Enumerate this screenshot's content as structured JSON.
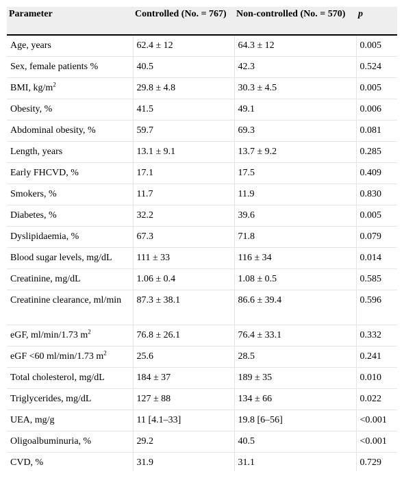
{
  "table": {
    "headers": {
      "parameter": "Parameter",
      "controlled": "Controlled (No. = 767)",
      "noncontrolled": "Non-controlled (No. = 570)",
      "p": "p"
    },
    "rows": [
      {
        "label": "Age, years",
        "sup": "",
        "controlled": "62.4 ± 12",
        "noncontrolled": "64.3 ± 12",
        "p": "0.005"
      },
      {
        "label": "Sex, female patients %",
        "sup": "",
        "controlled": "40.5",
        "noncontrolled": "42.3",
        "p": "0.524"
      },
      {
        "label": "BMI, kg/m",
        "sup": "2",
        "controlled": "29.8 ± 4.8",
        "noncontrolled": "30.3 ± 4.5",
        "p": "0.005"
      },
      {
        "label": "Obesity, %",
        "sup": "",
        "controlled": "41.5",
        "noncontrolled": "49.1",
        "p": "0.006"
      },
      {
        "label": "Abdominal obesity, %",
        "sup": "",
        "controlled": "59.7",
        "noncontrolled": "69.3",
        "p": "0.081"
      },
      {
        "label": "Length, years",
        "sup": "",
        "controlled": "13.1 ± 9.1",
        "noncontrolled": "13.7 ± 9.2",
        "p": "0.285"
      },
      {
        "label": "Early FHCVD, %",
        "sup": "",
        "controlled": "17.1",
        "noncontrolled": "17.5",
        "p": "0.409"
      },
      {
        "label": "Smokers, %",
        "sup": "",
        "controlled": "11.7",
        "noncontrolled": "11.9",
        "p": "0.830"
      },
      {
        "label": "Diabetes, %",
        "sup": "",
        "controlled": "32.2",
        "noncontrolled": "39.6",
        "p": "0.005"
      },
      {
        "label": "Dyslipidaemia, %",
        "sup": "",
        "controlled": "67.3",
        "noncontrolled": "71.8",
        "p": "0.079"
      },
      {
        "label": "Blood sugar levels, mg/dL",
        "sup": "",
        "controlled": "111 ± 33",
        "noncontrolled": "116 ± 34",
        "p": "0.014"
      },
      {
        "label": "Creatinine, mg/dL",
        "sup": "",
        "controlled": "1.06 ± 0.4",
        "noncontrolled": "1.08 ± 0.5",
        "p": "0.585"
      },
      {
        "label": "Creatinine clearance, ml/min",
        "sup": "",
        "controlled": "87.3 ± 38.1",
        "noncontrolled": "86.6 ± 39.4",
        "p": "0.596",
        "tall": true
      },
      {
        "label": "eGF, ml/min/1.73 m",
        "sup": "2",
        "controlled": "76.8 ± 26.1",
        "noncontrolled": "76.4 ± 33.1",
        "p": "0.332"
      },
      {
        "label": "eGF <60 ml/min/1.73 m",
        "sup": "2",
        "controlled": "25.6",
        "noncontrolled": "28.5",
        "p": "0.241"
      },
      {
        "label": "Total cholesterol, mg/dL",
        "sup": "",
        "controlled": "184 ± 37",
        "noncontrolled": "189 ± 35",
        "p": "0.010"
      },
      {
        "label": "Triglycerides, mg/dL",
        "sup": "",
        "controlled": "127 ± 88",
        "noncontrolled": "134 ± 66",
        "p": "0.022"
      },
      {
        "label": "UEA, mg/g",
        "sup": "",
        "controlled": "11 [4.1–33]",
        "noncontrolled": "19.8 [6–56]",
        "p": "<0.001"
      },
      {
        "label": "Oligoalbuminuria, %",
        "sup": "",
        "controlled": "29.2",
        "noncontrolled": "40.5",
        "p": "<0.001"
      },
      {
        "label": "CVD, %",
        "sup": "",
        "controlled": "31.9",
        "noncontrolled": "31.1",
        "p": "0.729"
      }
    ]
  }
}
